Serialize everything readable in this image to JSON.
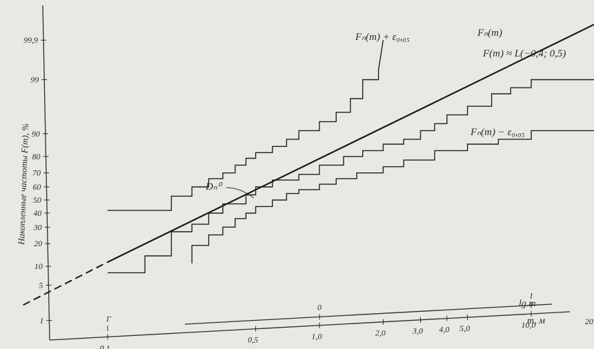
{
  "chart_data": {
    "type": "line",
    "ylabel": "Накопленные частоты F(m), %",
    "xlabel": "m, м",
    "x_top_label": "lg m",
    "x_scale": "log",
    "y_scale": "normal-probability",
    "xlim": [
      0.05,
      30
    ],
    "y_ticks": [
      "1",
      "5",
      "10",
      "20",
      "30",
      "40",
      "50",
      "60",
      "70",
      "80",
      "90",
      "99",
      "99,9"
    ],
    "x_ticks": [
      "0,1",
      "0,5",
      "1,0",
      "2,0",
      "3,0",
      "4,0",
      "5,0",
      "10,0",
      "20,0"
    ],
    "lg_ticks": [
      "1̄",
      "0",
      "1"
    ],
    "series": [
      {
        "name": "Fₙ(m) + ε₀,₀₅",
        "x": [
          0.1,
          0.2,
          0.2,
          0.25,
          0.25,
          0.3,
          0.3,
          0.35,
          0.35,
          0.4,
          0.4,
          0.45,
          0.45,
          0.5,
          0.5,
          0.6,
          0.6,
          0.7,
          0.7,
          0.8,
          0.8,
          1.0,
          1.0,
          1.2,
          1.2,
          1.4,
          1.4,
          1.6,
          1.6,
          1.9,
          1.9,
          2.0
        ],
        "y": [
          42,
          42,
          53,
          53,
          60,
          60,
          66,
          66,
          70,
          70,
          75,
          75,
          79,
          79,
          82,
          82,
          85,
          85,
          88,
          88,
          91,
          91,
          93.5,
          93.5,
          95.5,
          95.5,
          97.5,
          97.5,
          99,
          99,
          99.4,
          99.9
        ]
      },
      {
        "name": "Fₙ(m)",
        "x": [
          0.1,
          0.15,
          0.15,
          0.2,
          0.2,
          0.25,
          0.25,
          0.3,
          0.3,
          0.35,
          0.35,
          0.45,
          0.45,
          0.5,
          0.5,
          0.6,
          0.6,
          0.8,
          0.8,
          1.0,
          1.0,
          1.3,
          1.3,
          1.6,
          1.6,
          2.0,
          2.0,
          2.5,
          2.5,
          3.0,
          3.0,
          3.5,
          3.5,
          4.0,
          4.0,
          5.0,
          5.0,
          6.5,
          6.5,
          8.0,
          8.0,
          10.0,
          10.0,
          20.0,
          20.0
        ],
        "y": [
          8,
          8,
          14,
          14,
          27,
          27,
          32,
          32,
          40,
          40,
          47,
          47,
          54,
          54,
          60,
          60,
          65,
          65,
          69,
          69,
          75,
          75,
          80,
          80,
          83,
          83,
          86,
          86,
          88,
          88,
          91,
          91,
          93,
          93,
          95,
          95,
          96.5,
          96.5,
          98,
          98,
          98.5,
          98.5,
          99,
          99,
          99.9
        ]
      },
      {
        "name": "Fₙ(m) − ε₀,₀₅",
        "x": [
          0.25,
          0.25,
          0.3,
          0.3,
          0.35,
          0.35,
          0.4,
          0.4,
          0.45,
          0.45,
          0.5,
          0.5,
          0.6,
          0.6,
          0.7,
          0.7,
          0.8,
          0.8,
          1.0,
          1.0,
          1.2,
          1.2,
          1.5,
          1.5,
          2.0,
          2.0,
          2.5,
          2.5,
          3.5,
          3.5,
          5.0,
          5.0,
          7.0,
          7.0,
          10.0,
          10.0,
          20.0
        ],
        "y": [
          11,
          19,
          19,
          25,
          25,
          30,
          30,
          36,
          36,
          40,
          40,
          45,
          45,
          50,
          50,
          55,
          55,
          58,
          58,
          62,
          62,
          66,
          66,
          70,
          70,
          74,
          74,
          78,
          78,
          83,
          83,
          86,
          86,
          88,
          88,
          91,
          91
        ]
      }
    ],
    "fit": {
      "label": "F(m) ≈ L(−0,4; 0,5)",
      "mu": -0.4,
      "sigma": 0.5,
      "x_range": [
        0.05,
        25
      ]
    },
    "annotation": "Dₙ⁰"
  }
}
